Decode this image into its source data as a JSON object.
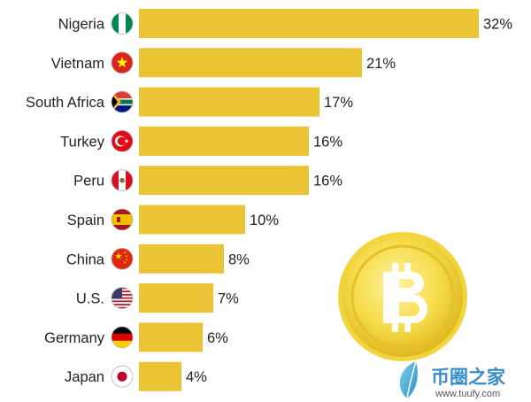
{
  "chart_data": {
    "type": "bar",
    "orientation": "horizontal",
    "categories": [
      "Nigeria",
      "Vietnam",
      "South Africa",
      "Turkey",
      "Peru",
      "Spain",
      "China",
      "U.S.",
      "Germany",
      "Japan"
    ],
    "values": [
      32,
      21,
      17,
      16,
      16,
      10,
      8,
      7,
      6,
      4
    ],
    "value_labels": [
      "32%",
      "21%",
      "17%",
      "16%",
      "16%",
      "10%",
      "8%",
      "7%",
      "6%",
      "4%"
    ],
    "bar_color": "#EAC434",
    "flags": [
      "nigeria-flag-icon",
      "vietnam-flag-icon",
      "south-africa-flag-icon",
      "turkey-flag-icon",
      "peru-flag-icon",
      "spain-flag-icon",
      "china-flag-icon",
      "us-flag-icon",
      "germany-flag-icon",
      "japan-flag-icon"
    ],
    "grid": false,
    "legend": "none"
  },
  "decoration": {
    "coin_icon": "bitcoin-coin-icon",
    "watermark_icon": "leaf-logo-icon",
    "watermark_text": "币圈之家",
    "watermark_url": "www.tuufy.com"
  }
}
